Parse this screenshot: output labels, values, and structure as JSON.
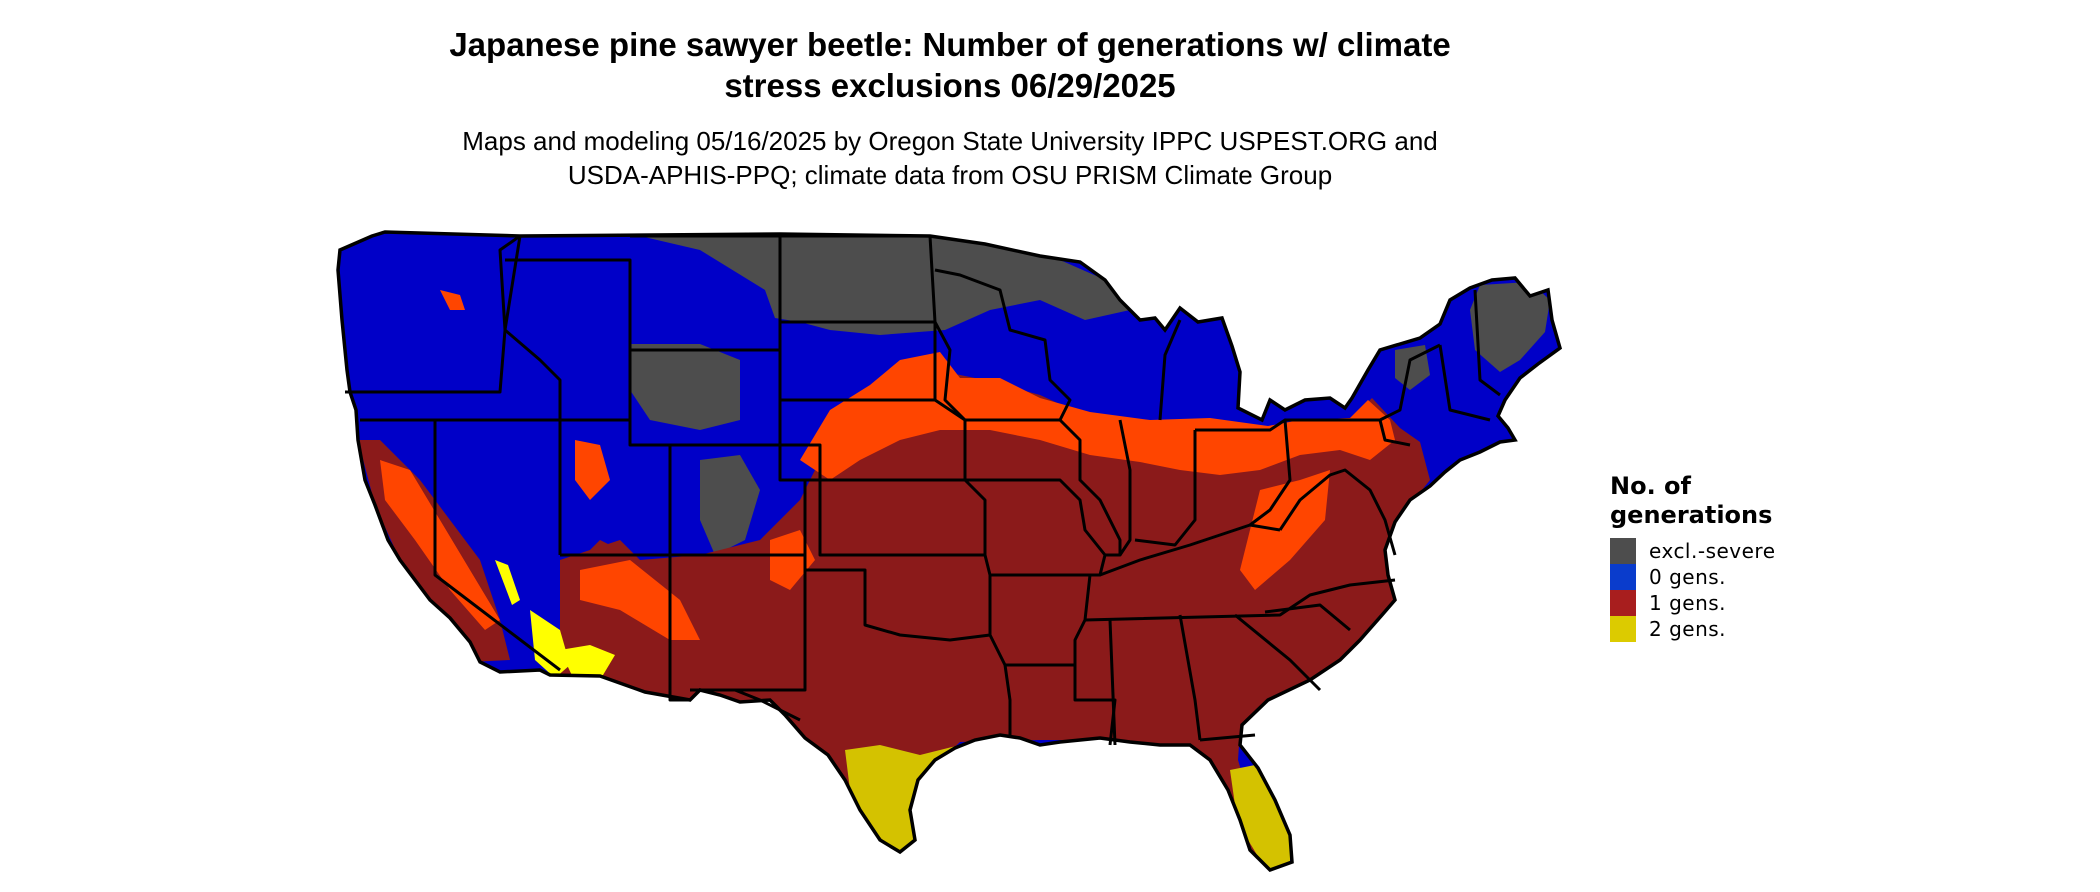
{
  "title_line1": "Japanese pine sawyer beetle: Number of generations w/ climate",
  "title_line2": "stress exclusions 06/29/2025",
  "subtitle_line1": "Maps and modeling 05/16/2025 by Oregon State University IPPC USPEST.ORG and",
  "subtitle_line2": "USDA-APHIS-PPQ; climate data from OSU PRISM Climate Group",
  "legend": {
    "title_line1": "No. of",
    "title_line2": "generations",
    "items": [
      {
        "label": "excl.-severe",
        "color": "#4d4d4d"
      },
      {
        "label": "0 gens.",
        "color": "#0a3ccc"
      },
      {
        "label": "1 gens.",
        "color": "#a81e1e"
      },
      {
        "label": "2 gens.",
        "color": "#dccb00"
      }
    ]
  },
  "map_colors": {
    "excluded": "#4d4d4d",
    "zero_gens": "#0000c8",
    "one_gen": "#8b1a1a",
    "one_gen_light": "#ff4500",
    "two_gens": "#d4c200",
    "two_gens_bright": "#ffff00",
    "borders": "#000000"
  }
}
